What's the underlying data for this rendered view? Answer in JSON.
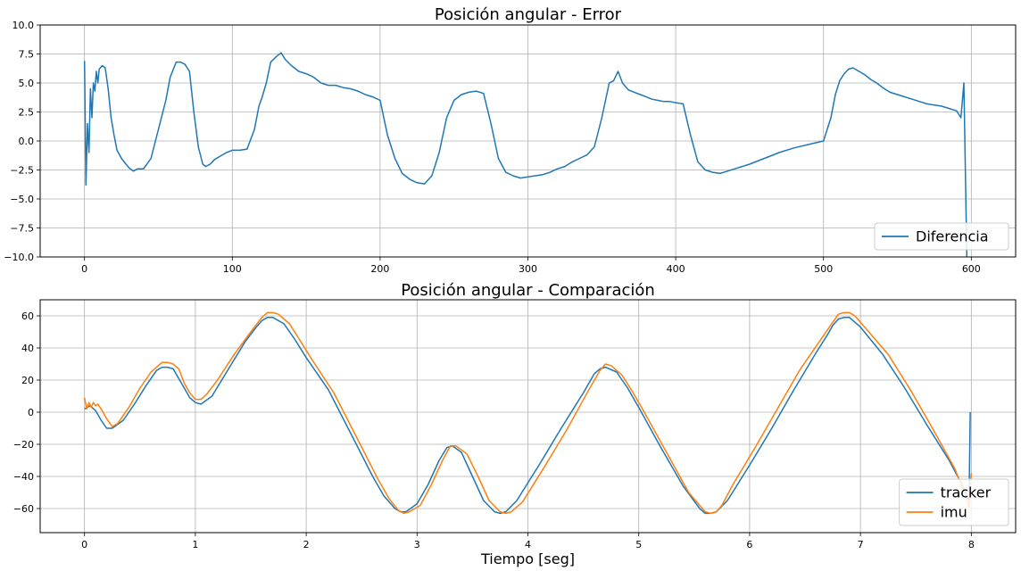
{
  "chart_data": [
    {
      "type": "line",
      "title": "Posición angular - Error",
      "xlabel": "",
      "ylabel": "",
      "xlim": [
        -30,
        630
      ],
      "ylim": [
        -10,
        10
      ],
      "xticks": [
        0,
        100,
        200,
        300,
        400,
        500,
        600
      ],
      "yticks": [
        -10.0,
        -7.5,
        -5.0,
        -2.5,
        0.0,
        2.5,
        5.0,
        7.5,
        10.0
      ],
      "grid": true,
      "legend_position": "lower-right",
      "series": [
        {
          "name": "Diferencia",
          "color": "#1f77b4",
          "x": [
            0,
            1,
            2,
            3,
            4,
            5,
            6,
            7,
            8,
            9,
            10,
            12,
            14,
            16,
            18,
            20,
            22,
            25,
            28,
            30,
            33,
            36,
            40,
            45,
            50,
            55,
            58,
            62,
            65,
            68,
            71,
            74,
            77,
            80,
            82,
            85,
            88,
            92,
            96,
            100,
            105,
            110,
            115,
            118,
            120,
            123,
            126,
            130,
            133,
            136,
            140,
            145,
            150,
            155,
            160,
            165,
            170,
            175,
            180,
            185,
            190,
            195,
            200,
            205,
            210,
            215,
            220,
            225,
            230,
            235,
            240,
            245,
            250,
            255,
            260,
            265,
            270,
            275,
            280,
            285,
            290,
            295,
            300,
            305,
            310,
            315,
            320,
            325,
            330,
            335,
            340,
            345,
            350,
            355,
            358,
            361,
            364,
            368,
            372,
            376,
            380,
            384,
            388,
            392,
            396,
            400,
            405,
            410,
            415,
            420,
            425,
            430,
            435,
            440,
            450,
            460,
            470,
            480,
            490,
            500,
            505,
            508,
            511,
            514,
            517,
            520,
            524,
            528,
            532,
            536,
            540,
            545,
            550,
            555,
            560,
            565,
            570,
            575,
            580,
            585,
            590,
            593,
            595,
            597
          ],
          "y": [
            6.9,
            -3.8,
            1.5,
            -1.0,
            4.5,
            2.0,
            5.0,
            4.3,
            6.0,
            5.0,
            6.2,
            6.5,
            6.3,
            4.5,
            2.0,
            0.5,
            -0.8,
            -1.5,
            -2.0,
            -2.3,
            -2.6,
            -2.4,
            -2.4,
            -1.5,
            1.0,
            3.5,
            5.5,
            6.8,
            6.8,
            6.6,
            6.0,
            2.5,
            -0.5,
            -2.0,
            -2.2,
            -2.0,
            -1.6,
            -1.3,
            -1.0,
            -0.8,
            -0.8,
            -0.7,
            1.0,
            3.0,
            3.7,
            5.0,
            6.8,
            7.3,
            7.6,
            7.0,
            6.5,
            6.0,
            5.8,
            5.5,
            5.0,
            4.8,
            4.8,
            4.6,
            4.5,
            4.3,
            4.0,
            3.8,
            3.5,
            0.5,
            -1.5,
            -2.8,
            -3.3,
            -3.6,
            -3.7,
            -3.0,
            -1.0,
            2.0,
            3.5,
            4.0,
            4.2,
            4.3,
            4.1,
            1.5,
            -1.5,
            -2.7,
            -3.0,
            -3.2,
            -3.1,
            -3.0,
            -2.9,
            -2.7,
            -2.4,
            -2.2,
            -1.8,
            -1.5,
            -1.2,
            -0.5,
            2.0,
            5.0,
            5.2,
            6.0,
            5.0,
            4.4,
            4.2,
            4.0,
            3.8,
            3.6,
            3.5,
            3.4,
            3.4,
            3.3,
            3.2,
            0.5,
            -1.8,
            -2.5,
            -2.7,
            -2.8,
            -2.6,
            -2.4,
            -2.0,
            -1.5,
            -1.0,
            -0.6,
            -0.3,
            0.0,
            2.0,
            4.0,
            5.2,
            5.8,
            6.2,
            6.3,
            6.0,
            5.7,
            5.3,
            5.0,
            4.6,
            4.2,
            4.0,
            3.8,
            3.6,
            3.4,
            3.2,
            3.1,
            3.0,
            2.8,
            2.6,
            2.0,
            5.0,
            -10.0
          ]
        }
      ]
    },
    {
      "type": "line",
      "title": "Posición angular - Comparación",
      "xlabel": "Tiempo [seg]",
      "ylabel": "",
      "xlim": [
        -0.4,
        8.4
      ],
      "ylim": [
        -75,
        70
      ],
      "xticks": [
        0,
        1,
        2,
        3,
        4,
        5,
        6,
        7,
        8
      ],
      "yticks": [
        -60,
        -40,
        -20,
        0,
        20,
        40,
        60
      ],
      "grid": true,
      "legend_position": "lower-right",
      "series": [
        {
          "name": "tracker",
          "color": "#1f77b4",
          "x": [
            0.0,
            0.05,
            0.1,
            0.15,
            0.2,
            0.25,
            0.35,
            0.45,
            0.55,
            0.65,
            0.7,
            0.75,
            0.8,
            0.9,
            0.95,
            1.0,
            1.05,
            1.15,
            1.3,
            1.45,
            1.55,
            1.6,
            1.65,
            1.7,
            1.8,
            1.9,
            2.0,
            2.2,
            2.4,
            2.6,
            2.7,
            2.8,
            2.85,
            2.9,
            3.0,
            3.1,
            3.2,
            3.27,
            3.32,
            3.4,
            3.5,
            3.6,
            3.7,
            3.75,
            3.8,
            3.9,
            4.1,
            4.3,
            4.5,
            4.6,
            4.65,
            4.7,
            4.8,
            4.9,
            5.0,
            5.2,
            5.4,
            5.55,
            5.6,
            5.65,
            5.7,
            5.8,
            6.0,
            6.2,
            6.4,
            6.6,
            6.7,
            6.75,
            6.8,
            6.85,
            6.9,
            7.0,
            7.2,
            7.4,
            7.6,
            7.8,
            7.9,
            7.95,
            7.98,
            7.99
          ],
          "y": [
            2,
            4,
            1,
            -5,
            -10,
            -10,
            -5,
            5,
            16,
            26,
            28,
            28,
            27,
            15,
            9,
            6,
            5,
            10,
            27,
            44,
            53,
            57,
            59,
            59,
            55,
            45,
            34,
            14,
            -13,
            -40,
            -52,
            -60,
            -62,
            -62,
            -57,
            -45,
            -30,
            -22,
            -21,
            -25,
            -40,
            -55,
            -62,
            -63,
            -62,
            -55,
            -33,
            -10,
            12,
            24,
            27,
            28,
            25,
            15,
            3,
            -22,
            -46,
            -60,
            -63,
            -63,
            -62,
            -55,
            -33,
            -10,
            14,
            37,
            48,
            54,
            58,
            59,
            59,
            53,
            36,
            15,
            -8,
            -30,
            -43,
            -50,
            -55,
            0
          ]
        },
        {
          "name": "imu",
          "color": "#ff7f0e",
          "x": [
            0.0,
            0.02,
            0.04,
            0.06,
            0.08,
            0.1,
            0.12,
            0.15,
            0.2,
            0.25,
            0.3,
            0.4,
            0.5,
            0.6,
            0.7,
            0.75,
            0.8,
            0.85,
            0.9,
            0.95,
            1.0,
            1.05,
            1.1,
            1.2,
            1.35,
            1.5,
            1.6,
            1.65,
            1.7,
            1.75,
            1.85,
            1.95,
            2.05,
            2.25,
            2.45,
            2.65,
            2.75,
            2.83,
            2.88,
            2.93,
            3.03,
            3.13,
            3.23,
            3.3,
            3.35,
            3.45,
            3.55,
            3.65,
            3.75,
            3.8,
            3.85,
            3.95,
            4.15,
            4.35,
            4.55,
            4.65,
            4.7,
            4.75,
            4.85,
            4.95,
            5.05,
            5.25,
            5.45,
            5.6,
            5.65,
            5.7,
            5.75,
            5.85,
            6.05,
            6.25,
            6.45,
            6.65,
            6.75,
            6.8,
            6.85,
            6.9,
            6.95,
            7.05,
            7.25,
            7.45,
            7.65,
            7.85,
            7.95,
            7.98,
            8.0
          ],
          "y": [
            9,
            2,
            6,
            3,
            6,
            4,
            5,
            2,
            -4,
            -9,
            -7,
            3,
            15,
            25,
            31,
            31,
            30,
            27,
            18,
            12,
            8,
            8,
            11,
            20,
            36,
            50,
            59,
            62,
            62,
            61,
            55,
            44,
            33,
            12,
            -15,
            -42,
            -54,
            -61,
            -63,
            -62,
            -58,
            -45,
            -30,
            -21,
            -21,
            -26,
            -40,
            -55,
            -62,
            -63,
            -62,
            -56,
            -34,
            -11,
            14,
            26,
            30,
            29,
            23,
            12,
            0,
            -25,
            -50,
            -62,
            -63,
            -62,
            -58,
            -45,
            -22,
            2,
            26,
            46,
            56,
            61,
            62,
            62,
            60,
            52,
            36,
            14,
            -10,
            -35,
            -52,
            -60,
            -38
          ]
        }
      ]
    }
  ]
}
